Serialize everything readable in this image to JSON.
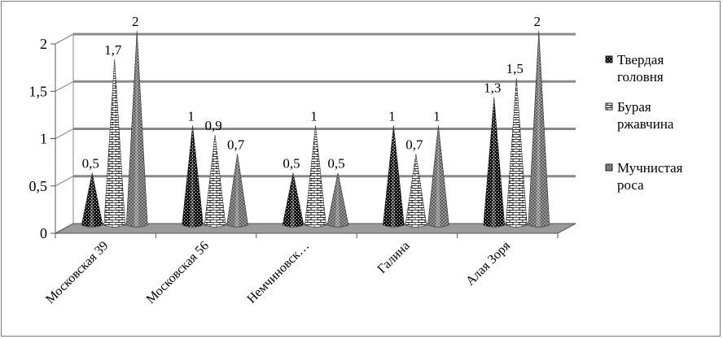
{
  "chart_data": {
    "type": "bar",
    "title": "",
    "xlabel": "",
    "ylabel": "",
    "ylim": [
      0,
      2
    ],
    "yticks": [
      "0",
      "0,5",
      "1",
      "1,5",
      "2"
    ],
    "grid": true,
    "legend_position": "right",
    "categories": [
      "Московская 39",
      "Московская 56",
      "Немчиновск…",
      "Галина",
      "Алая Зоря"
    ],
    "series": [
      {
        "name": "Твердая головня",
        "values": [
          0.5,
          1,
          0.5,
          1,
          1.3
        ],
        "labels": [
          "0,5",
          "1",
          "0,5",
          "1",
          "1,3"
        ],
        "color": "#111111",
        "pattern": "dots-dark"
      },
      {
        "name": "Бурая ржавчина",
        "values": [
          1.7,
          0.9,
          1,
          0.7,
          1.5
        ],
        "labels": [
          "1,7",
          "0,9",
          "1",
          "0,7",
          "1,5"
        ],
        "color": "#ffffff",
        "pattern": "bricks"
      },
      {
        "name": "Мучнистая роса",
        "values": [
          2,
          0.7,
          0.5,
          1,
          2
        ],
        "labels": [
          "2",
          "0,7",
          "0,5",
          "1",
          "2"
        ],
        "color": "#888888",
        "pattern": "checker-gray"
      }
    ]
  }
}
